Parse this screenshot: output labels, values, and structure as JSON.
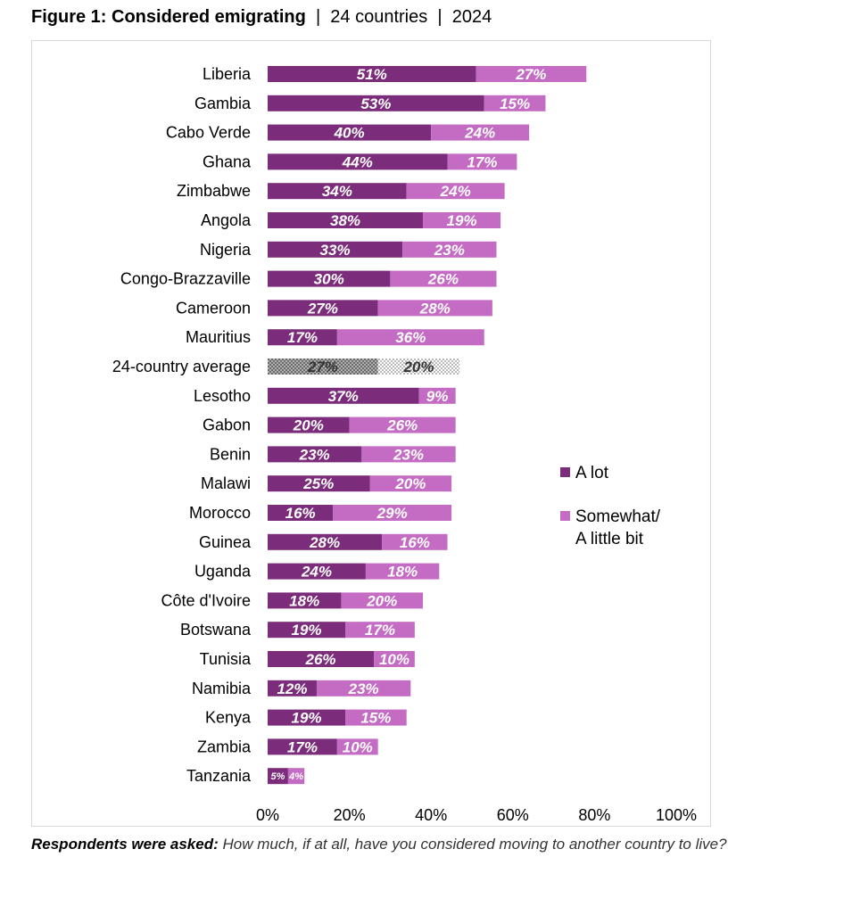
{
  "title": {
    "figure": "Figure 1: Considered emigrating",
    "sep1": "|",
    "scope": "24 countries",
    "sep2": "|",
    "year": "2024"
  },
  "footnote": {
    "label": "Respondents were asked:",
    "question": "How much, if at all, have you considered moving to another country to live?"
  },
  "colors": {
    "a_lot": "#7b2d7b",
    "somewhat": "#c46bc4",
    "average_dark": "#6a6a6a",
    "average_light": "#b0b0b0"
  },
  "chart_data": {
    "type": "bar",
    "orientation": "horizontal",
    "stacked": true,
    "title": "Considered emigrating",
    "categories": [
      "Liberia",
      "Gambia",
      "Cabo Verde",
      "Ghana",
      "Zimbabwe",
      "Angola",
      "Nigeria",
      "Congo-Brazzaville",
      "Cameroon",
      "Mauritius",
      "24-country average",
      "Lesotho",
      "Gabon",
      "Benin",
      "Malawi",
      "Morocco",
      "Guinea",
      "Uganda",
      "Côte d'Ivoire",
      "Botswana",
      "Tunisia",
      "Namibia",
      "Kenya",
      "Zambia",
      "Tanzania"
    ],
    "series": [
      {
        "name": "A lot",
        "values": [
          51,
          53,
          40,
          44,
          34,
          38,
          33,
          30,
          27,
          17,
          27,
          37,
          20,
          23,
          25,
          16,
          28,
          24,
          18,
          19,
          26,
          12,
          19,
          17,
          5
        ]
      },
      {
        "name": "Somewhat/ A little bit",
        "values": [
          27,
          15,
          24,
          17,
          24,
          19,
          23,
          26,
          28,
          36,
          20,
          9,
          26,
          23,
          20,
          29,
          16,
          18,
          20,
          17,
          10,
          23,
          15,
          10,
          4
        ]
      }
    ],
    "highlight_category": "24-country average",
    "xlim": [
      0,
      100
    ],
    "xticks": [
      "0%",
      "20%",
      "40%",
      "60%",
      "80%",
      "100%"
    ],
    "legend": [
      {
        "label": "A lot"
      },
      {
        "label": "Somewhat/",
        "label2": "A little bit"
      }
    ],
    "legend_position": "right",
    "value_suffix": "%"
  }
}
